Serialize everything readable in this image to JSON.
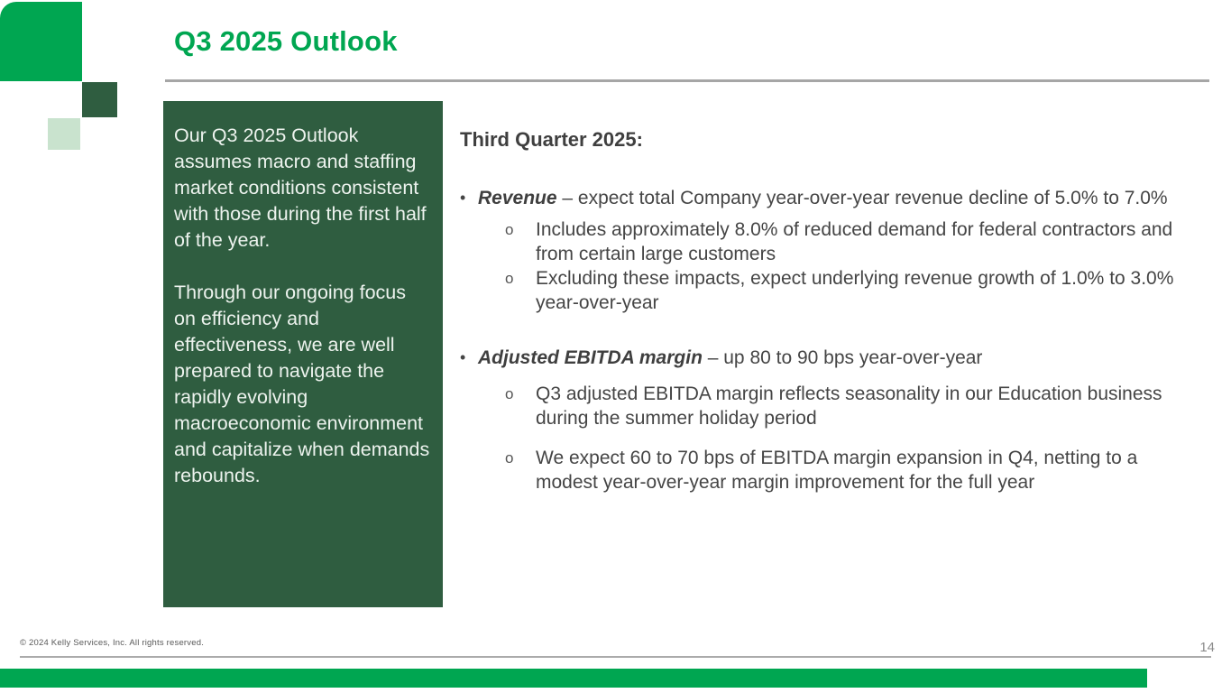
{
  "slide": {
    "title": "Q3 2025 Outlook",
    "colors": {
      "kelly_green": "#00A651",
      "dark_green": "#2F5D40",
      "light_green": "#C9E3CE",
      "text_gray": "#404040",
      "rule_gray": "#A6A6A6"
    }
  },
  "sidebar_box": {
    "paragraphs": {
      "0": "Our Q3 2025 Outlook assumes macro and staffing market conditions consistent with those during the first half of the year.",
      "1": "Through our ongoing focus on efficiency and effectiveness, we are well prepared to navigate the rapidly evolving macroeconomic environment and capitalize when demands rebounds."
    }
  },
  "content": {
    "heading": "Third Quarter 2025:",
    "bullet_marker": "•",
    "sub_marker": "o",
    "bullets": {
      "0": {
        "term": "Revenue",
        "rest": " – expect total Company year-over-year revenue decline of 5.0% to 7.0%",
        "sub": {
          "0": "Includes approximately 8.0% of reduced demand for federal contractors and from certain large customers",
          "1": "Excluding these impacts, expect underlying revenue growth of 1.0% to 3.0% year-over-year"
        }
      },
      "1": {
        "term": "Adjusted EBITDA margin",
        "rest": " – up 80 to 90 bps year-over-year",
        "sub": {
          "0": "Q3 adjusted EBITDA margin reflects seasonality in our Education business during the summer holiday period",
          "1": "We expect 60 to 70 bps of EBITDA margin expansion in Q4, netting to a modest year-over-year margin improvement for the full year"
        }
      }
    }
  },
  "footer": {
    "copyright": "© 2024 Kelly Services, Inc. All rights reserved.",
    "page_number": "14"
  }
}
